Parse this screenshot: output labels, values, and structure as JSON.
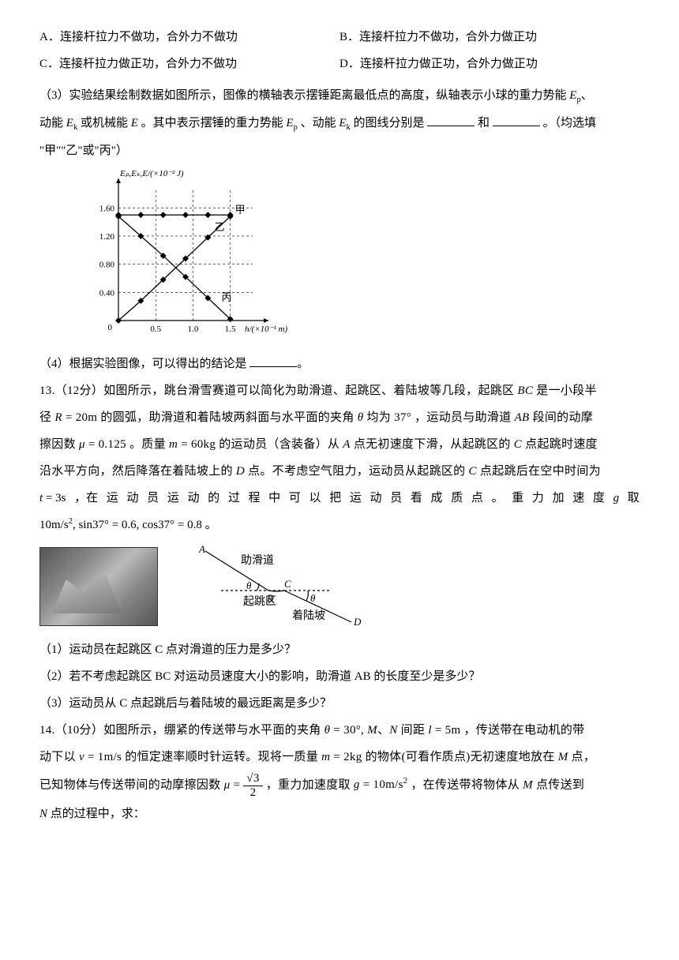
{
  "options": {
    "a": "A．连接杆拉力不做功，合外力不做功",
    "b": "B．连接杆拉力不做功，合外力做正功",
    "c": "C．连接杆拉力做正功，合外力不做功",
    "d": "D．连接杆拉力做正功，合外力做正功"
  },
  "q3": {
    "text1": "（3）实验结果绘制数据如图所示，图像的横轴表示摆锤距离最低点的高度，纵轴表示小球的重力势能",
    "Ep": "E",
    "Ep_sub": "p",
    "text2": "动能",
    "Ek": "E",
    "Ek_sub": "k",
    "text3": " 或机械能 ",
    "E": "E",
    "text4": " 。其中表示摆锤的重力势能 ",
    "text5": " 、动能 ",
    "text6": " 的图线分别是",
    "text7": "和",
    "text8": "。（均选填",
    "text9": "\"甲\"\"乙\"或\"丙\"）"
  },
  "chart": {
    "ylabel": "Eₚ,Eₖ,E/(×10⁻² J)",
    "xlabel": "h/(×10⁻¹ m)",
    "ylim": [
      0,
      1.85
    ],
    "xlim": [
      0,
      1.8
    ],
    "yticks": [
      0.4,
      0.8,
      1.2,
      1.6
    ],
    "xticks": [
      0.5,
      1.0,
      1.5
    ],
    "background_color": "#ffffff",
    "axis_color": "#000000",
    "grid_style": "dashed",
    "series_jia": {
      "label": "甲",
      "x": [
        0,
        0.3,
        0.6,
        0.9,
        1.2,
        1.5
      ],
      "y": [
        1.5,
        1.5,
        1.5,
        1.5,
        1.5,
        1.5
      ],
      "marker": "diamond",
      "color": "#000000"
    },
    "series_yi": {
      "label": "乙",
      "x": [
        0,
        0.3,
        0.6,
        0.9,
        1.2,
        1.5
      ],
      "y": [
        0,
        0.28,
        0.58,
        0.88,
        1.18,
        1.48
      ],
      "marker": "diamond",
      "color": "#000000"
    },
    "series_bing": {
      "label": "丙",
      "x": [
        0,
        0.3,
        0.6,
        0.9,
        1.2,
        1.5
      ],
      "y": [
        1.48,
        1.2,
        0.92,
        0.62,
        0.32,
        0.02
      ],
      "marker": "diamond",
      "color": "#000000"
    }
  },
  "q4": "（4）根据实验图像，可以得出的结论是",
  "q13": {
    "head": "13.（12分）如图所示，跳台滑雪赛道可以简化为助滑道、起跳区、着陆坡等几段，起跳区",
    "bc": "BC",
    "text1": "是一小段半",
    "text2": "径",
    "R": "R = 20m",
    "text3": "的圆弧，助滑道和着陆坡两斜面与水平面的夹角",
    "theta": "θ",
    "text4": "均为",
    "ang": "37°",
    "text5": "，运动员与助滑道",
    "ab": "AB",
    "text6": "段间的动摩",
    "text7": "擦因数",
    "mu": "μ = 0.125",
    "text8": "。质量",
    "m": "m = 60kg",
    "text9": "的运动员（含装备）从",
    "A": "A",
    "text10": "点无初速度下滑，从起跳区的",
    "C": "C",
    "text11": "点起跳时速度",
    "text12": "沿水平方向，然后降落在着陆坡上的",
    "D": "D",
    "text13": "点。不考虑空气阻力，运动员从起跳区的",
    "text14": "点起跳后在空中时间为",
    "t_eq": "t = 3s",
    "text15_a": "，在",
    "text15_b": "运",
    "text15_c": "动",
    "text15_d": "员",
    "text15_e": "运",
    "text15_f": "动",
    "text15_g": "的",
    "text15_h": "过",
    "text15_i": "程",
    "text15_j": "中",
    "text15_k": "可",
    "text15_l": "以",
    "text15_m": "把",
    "text15_n": "运",
    "text15_o": "动",
    "text15_p": "员",
    "text15_q": "看",
    "text15_r": "成",
    "text15_s": "质",
    "text15_t": "点",
    "text15_u": "。",
    "text15_v": "重",
    "text15_w": "力",
    "text15_x": "加",
    "text15_y": "速",
    "text15_z": "度",
    "g": "g",
    "text16": "取",
    "g_eq": "10m/s²，sin37° = 0.6, cos37° = 0.8",
    "sub1": "（1）运动员在起跳区 C 点对滑道的压力是多少？",
    "sub2": "（2）若不考虑起跳区 BC 对运动员速度大小的影响，助滑道 AB 的长度至少是多少？",
    "sub3": "（3）运动员从 C 点起跳后与着陆坡的最远距离是多少？"
  },
  "diagram13": {
    "labels": {
      "A": "A",
      "B": "B",
      "C": "C",
      "D": "D",
      "t1": "助滑道",
      "t2": "起跳区",
      "t3": "着陆坡",
      "theta1": "θ",
      "theta2": "θ"
    },
    "color": "#000000"
  },
  "q14": {
    "head": "14.（10分）如图所示，绷紧的传送带与水平面的夹角",
    "theta_eq": "θ = 30°，M、N",
    "text1": "间距",
    "l_eq": "l = 5m",
    "text2": "，传送带在电动机的带",
    "text3": "动下以",
    "v_eq": "v = 1m/s",
    "text4": "的恒定速率顺时针运转。现将一质量",
    "m_eq": "m = 2kg",
    "text5": "的物体(可看作质点)无初速度地放在",
    "M": "M",
    "text6": "点，",
    "text7": "已知物体与传送带间的动摩擦因数",
    "mu_sym": "μ",
    "eq": " = ",
    "frac_n": "√3",
    "frac_d": "2",
    "text8": "，重力加速度取",
    "g_eq": "g = 10m/s²",
    "text9": "，在传送带将物体从",
    "text10": "点传送到",
    "N": "N",
    "text11": "点的过程中，求："
  }
}
